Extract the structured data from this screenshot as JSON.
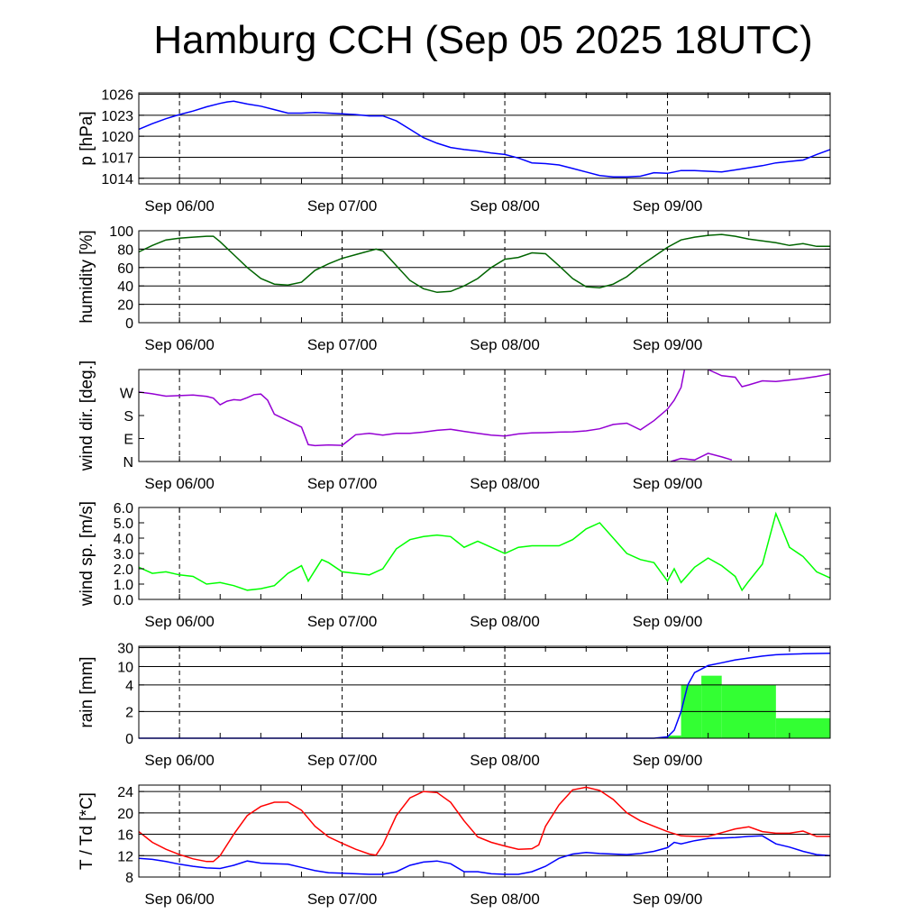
{
  "title": "Hamburg CCH (Sep 05 2025 18UTC)",
  "colors": {
    "pressure": "#0000ff",
    "humidity": "#006400",
    "wind_dir": "#9400d3",
    "wind_speed": "#00ff00",
    "rain_bar": "#33ff33",
    "rain_accum": "#0000ff",
    "temperature": "#ff0000",
    "dewpoint": "#0000ff"
  },
  "chart_data": [
    {
      "type": "line",
      "ylabel": "p [hPa]",
      "x_unit": "hours since Sep 05 18UTC",
      "xlim": [
        0,
        102
      ],
      "x_tick_labels": [
        "Sep 06/00",
        "Sep 07/00",
        "Sep 08/00",
        "Sep 09/00"
      ],
      "x_tick_hours": [
        6,
        30,
        54,
        78
      ],
      "ylim": [
        1013.2,
        1026.2
      ],
      "yticks": [
        1014,
        1017,
        1020,
        1023,
        1026
      ],
      "grid": true,
      "series": [
        {
          "x": [
            0,
            2,
            4,
            6,
            8,
            10,
            12,
            13,
            14,
            16,
            18,
            20,
            22,
            24,
            26,
            28,
            30,
            32,
            34,
            36,
            38,
            40,
            42,
            44,
            46,
            48,
            50,
            52,
            54,
            56,
            58,
            60,
            62,
            64,
            66,
            68,
            70,
            72,
            74,
            76,
            78,
            80,
            82,
            84,
            86,
            88,
            90,
            92,
            94,
            96,
            98,
            100,
            102
          ],
          "y": [
            1021.0,
            1021.8,
            1022.5,
            1023.1,
            1023.6,
            1024.2,
            1024.7,
            1024.9,
            1025.0,
            1024.6,
            1024.3,
            1023.8,
            1023.3,
            1023.3,
            1023.4,
            1023.3,
            1023.2,
            1023.1,
            1022.9,
            1022.9,
            1022.2,
            1021.0,
            1019.8,
            1019.0,
            1018.4,
            1018.1,
            1017.9,
            1017.6,
            1017.4,
            1016.9,
            1016.2,
            1016.1,
            1015.9,
            1015.4,
            1014.9,
            1014.4,
            1014.2,
            1014.2,
            1014.3,
            1014.8,
            1014.7,
            1015.1,
            1015.1,
            1015.0,
            1014.9,
            1015.2,
            1015.5,
            1015.8,
            1016.2,
            1016.4,
            1016.6,
            1017.4,
            1018.1
          ]
        }
      ]
    },
    {
      "type": "line",
      "ylabel": "humidity [%]",
      "x_unit": "hours since Sep 05 18UTC",
      "xlim": [
        0,
        102
      ],
      "x_tick_labels": [
        "Sep 06/00",
        "Sep 07/00",
        "Sep 08/00",
        "Sep 09/00"
      ],
      "x_tick_hours": [
        6,
        30,
        54,
        78
      ],
      "ylim": [
        0,
        100
      ],
      "yticks": [
        0,
        20,
        40,
        60,
        80,
        100
      ],
      "grid": true,
      "series": [
        {
          "x": [
            0,
            2,
            4,
            6,
            8,
            10,
            11,
            12,
            14,
            16,
            18,
            20,
            22,
            24,
            26,
            28,
            30,
            32,
            34,
            35,
            36,
            38,
            40,
            42,
            44,
            46,
            48,
            50,
            52,
            54,
            56,
            58,
            60,
            62,
            64,
            66,
            68,
            70,
            72,
            74,
            76,
            78,
            80,
            82,
            84,
            86,
            88,
            90,
            92,
            94,
            96,
            98,
            100,
            102
          ],
          "y": [
            77,
            84,
            90,
            92,
            93,
            94,
            94,
            88,
            74,
            60,
            48,
            42,
            41,
            44,
            57,
            64,
            70,
            74,
            78,
            80,
            78,
            62,
            46,
            37,
            33,
            34,
            40,
            48,
            60,
            69,
            71,
            76,
            75,
            62,
            48,
            39,
            38,
            42,
            50,
            62,
            72,
            82,
            90,
            93,
            95,
            96,
            94,
            91,
            89,
            87,
            84,
            86,
            83,
            83
          ]
        }
      ]
    },
    {
      "type": "line",
      "ylabel": "wind dir. [deg.]",
      "x_unit": "hours since Sep 05 18UTC",
      "xlim": [
        0,
        102
      ],
      "x_tick_labels": [
        "Sep 06/00",
        "Sep 07/00",
        "Sep 08/00",
        "Sep 09/00"
      ],
      "x_tick_hours": [
        6,
        30,
        54,
        78
      ],
      "ylim": [
        0,
        360
      ],
      "yticks": [
        0,
        90,
        180,
        270
      ],
      "ytick_labels": [
        "N",
        "E",
        "S",
        "W"
      ],
      "grid": false,
      "series": [
        {
          "x": [
            0,
            2,
            4,
            6,
            8,
            10,
            11,
            12,
            13,
            14,
            15,
            16,
            17,
            18,
            19,
            20,
            22,
            24,
            25,
            26,
            28,
            30,
            32,
            34,
            36,
            38,
            40,
            42,
            44,
            46,
            48,
            50,
            52,
            54,
            56,
            58,
            60,
            62,
            64,
            66,
            68,
            70,
            72,
            74,
            76,
            78,
            79,
            80,
            80.5
          ],
          "y": [
            272,
            265,
            256,
            258,
            260,
            255,
            248,
            222,
            236,
            242,
            240,
            250,
            262,
            264,
            240,
            185,
            160,
            135,
            66,
            62,
            65,
            63,
            105,
            110,
            103,
            110,
            110,
            115,
            122,
            126,
            118,
            110,
            103,
            100,
            108,
            112,
            113,
            115,
            116,
            120,
            128,
            145,
            150,
            124,
            160,
            205,
            240,
            290,
            358
          ]
        },
        {
          "x": [
            84,
            86,
            88,
            89,
            90,
            92,
            94,
            96,
            98,
            100,
            102
          ],
          "y": [
            360,
            336,
            330,
            293,
            300,
            316,
            313,
            319,
            325,
            333,
            343
          ]
        },
        {
          "x": [
            78.5,
            80,
            82,
            84,
            86,
            87.5
          ],
          "y": [
            0,
            12,
            6,
            32,
            18,
            6
          ]
        }
      ]
    },
    {
      "type": "line",
      "ylabel": "wind sp. [m/s]",
      "x_unit": "hours since Sep 05 18UTC",
      "xlim": [
        0,
        102
      ],
      "x_tick_labels": [
        "Sep 06/00",
        "Sep 07/00",
        "Sep 08/00",
        "Sep 09/00"
      ],
      "x_tick_hours": [
        6,
        30,
        54,
        78
      ],
      "ylim": [
        0,
        6.0
      ],
      "yticks": [
        0.0,
        1.0,
        2.0,
        3.0,
        4.0,
        5.0,
        6.0
      ],
      "ytick_labels": [
        "0.0",
        "1.0",
        "2.0",
        "3.0",
        "4.0",
        "5.0",
        "6.0"
      ],
      "grid": false,
      "series": [
        {
          "x": [
            0,
            2,
            4,
            6,
            8,
            10,
            12,
            14,
            16,
            18,
            20,
            22,
            24,
            25,
            26,
            27,
            28,
            30,
            32,
            34,
            36,
            38,
            40,
            42,
            44,
            46,
            48,
            50,
            52,
            54,
            56,
            58,
            60,
            62,
            64,
            66,
            68,
            70,
            72,
            74,
            76,
            78,
            79,
            80,
            82,
            84,
            86,
            88,
            89,
            90,
            92,
            94,
            95,
            96,
            98,
            100,
            102
          ],
          "y": [
            2.1,
            1.7,
            1.8,
            1.6,
            1.5,
            1.0,
            1.1,
            0.9,
            0.6,
            0.7,
            0.9,
            1.7,
            2.2,
            1.2,
            1.9,
            2.6,
            2.4,
            1.8,
            1.7,
            1.6,
            2.0,
            3.3,
            3.9,
            4.1,
            4.2,
            4.1,
            3.4,
            3.8,
            3.4,
            3.0,
            3.4,
            3.5,
            3.5,
            3.5,
            3.9,
            4.6,
            5.0,
            4.0,
            3.0,
            2.6,
            2.4,
            1.2,
            2.0,
            1.1,
            2.1,
            2.7,
            2.2,
            1.5,
            0.6,
            1.2,
            2.3,
            5.6,
            4.5,
            3.4,
            2.8,
            1.8,
            1.4
          ]
        }
      ]
    },
    {
      "type": "bar",
      "ylabel": "rain [mm]",
      "x_unit": "hours since Sep 05 18UTC",
      "xlim": [
        0,
        102
      ],
      "x_tick_labels": [
        "Sep 06/00",
        "Sep 07/00",
        "Sep 08/00",
        "Sep 09/00"
      ],
      "x_tick_hours": [
        6,
        30,
        54,
        78
      ],
      "y_scale": "nonlinear",
      "yticks": [
        0,
        2,
        4,
        10,
        30
      ],
      "grid": true,
      "bars": [
        {
          "x0": 78,
          "x1": 80,
          "value": 0.2
        },
        {
          "x0": 80,
          "x1": 83,
          "value": 4.0
        },
        {
          "x0": 83,
          "x1": 86,
          "value": 7.0
        },
        {
          "x0": 86,
          "x1": 94,
          "value": 4.0
        },
        {
          "x0": 94,
          "x1": 102,
          "value": 1.5
        }
      ],
      "series": [
        {
          "name": "accumulated",
          "x": [
            0,
            76,
            78,
            79,
            80,
            81,
            82,
            84,
            86,
            88,
            90,
            92,
            94,
            96,
            98,
            100,
            102
          ],
          "y": [
            0,
            0,
            0.1,
            0.6,
            2.0,
            4.0,
            8.0,
            11.0,
            14.0,
            17.0,
            19.0,
            21.0,
            22.5,
            23.0,
            23.5,
            23.8,
            24.0
          ]
        }
      ]
    },
    {
      "type": "line",
      "ylabel": "T / Td [*C]",
      "x_unit": "hours since Sep 05 18UTC",
      "xlim": [
        0,
        102
      ],
      "x_tick_labels": [
        "Sep 06/00",
        "Sep 07/00",
        "Sep 08/00",
        "Sep 09/00"
      ],
      "x_tick_hours": [
        6,
        30,
        54,
        78
      ],
      "ylim": [
        8,
        25.2
      ],
      "yticks": [
        8,
        12,
        16,
        20,
        24
      ],
      "grid": true,
      "series": [
        {
          "x": [
            0,
            2,
            4,
            6,
            8,
            10,
            11,
            12,
            14,
            16,
            18,
            20,
            22,
            24,
            26,
            28,
            30,
            32,
            34,
            35,
            36,
            38,
            40,
            42,
            44,
            46,
            48,
            50,
            52,
            54,
            56,
            58,
            59,
            60,
            62,
            64,
            66,
            68,
            70,
            72,
            74,
            76,
            78,
            80,
            82,
            84,
            86,
            88,
            90,
            92,
            94,
            96,
            98,
            100,
            102
          ],
          "y": [
            16.5,
            14.5,
            13.2,
            12.2,
            11.4,
            10.9,
            10.9,
            12.0,
            16.0,
            19.5,
            21.2,
            22.0,
            22.0,
            20.5,
            17.5,
            15.5,
            14.3,
            13.2,
            12.3,
            12.1,
            14.0,
            19.5,
            22.8,
            24.0,
            23.8,
            22.0,
            18.5,
            15.5,
            14.5,
            13.8,
            13.2,
            13.3,
            14.0,
            17.5,
            21.5,
            24.3,
            24.8,
            24.2,
            22.5,
            20.0,
            18.5,
            17.5,
            16.5,
            15.7,
            15.6,
            15.6,
            16.3,
            17.0,
            17.4,
            16.5,
            16.2,
            16.2,
            16.6,
            15.6,
            15.6
          ]
        },
        {
          "x": [
            0,
            2,
            4,
            6,
            8,
            10,
            12,
            14,
            16,
            18,
            20,
            22,
            24,
            26,
            28,
            30,
            32,
            34,
            36,
            38,
            40,
            42,
            44,
            46,
            48,
            50,
            52,
            54,
            56,
            58,
            60,
            62,
            64,
            66,
            68,
            70,
            72,
            74,
            76,
            78,
            79,
            80,
            82,
            84,
            86,
            88,
            90,
            92,
            94,
            96,
            98,
            100,
            102
          ],
          "y": [
            11.5,
            11.3,
            10.9,
            10.4,
            10.0,
            9.7,
            9.6,
            10.2,
            11.0,
            10.6,
            10.5,
            10.4,
            9.8,
            9.2,
            8.8,
            8.7,
            8.6,
            8.5,
            8.5,
            9.0,
            10.2,
            10.8,
            11.0,
            10.5,
            9.0,
            9.0,
            8.6,
            8.5,
            8.5,
            9.0,
            10.0,
            11.5,
            12.3,
            12.6,
            12.4,
            12.3,
            12.2,
            12.4,
            12.8,
            13.5,
            14.5,
            14.2,
            14.8,
            15.2,
            15.3,
            15.4,
            15.6,
            15.7,
            14.2,
            13.6,
            12.8,
            12.2,
            12.0
          ]
        }
      ]
    }
  ]
}
